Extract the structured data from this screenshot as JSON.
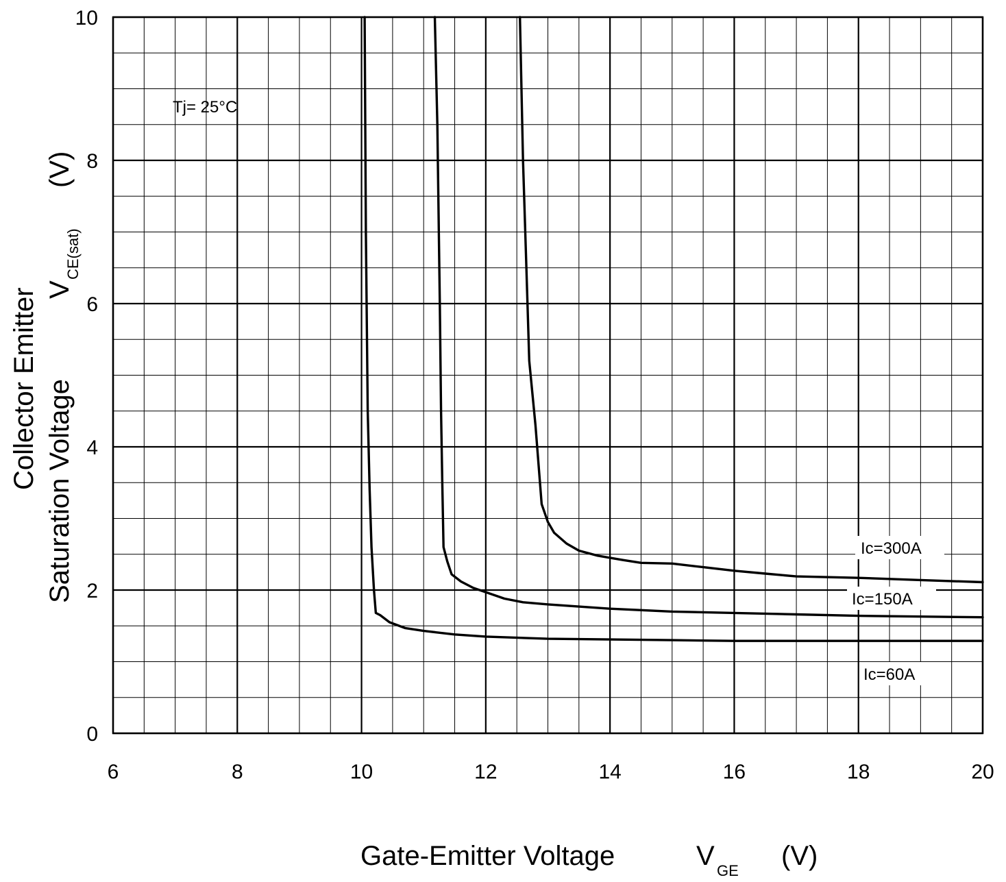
{
  "chart_data": {
    "type": "line",
    "title": "",
    "xlabel": {
      "main": "Gate-Emitter Voltage",
      "symbol": "V",
      "subscript": "GE",
      "unit": "(V)"
    },
    "ylabel": {
      "line1": "Collector Emitter",
      "line2": "Saturation Voltage",
      "symbol": "V",
      "subscript": "CE(sat)",
      "unit": "(V)"
    },
    "xlim": [
      6,
      20
    ],
    "ylim": [
      0,
      10
    ],
    "x_ticks": [
      6,
      8,
      10,
      12,
      14,
      16,
      18,
      20
    ],
    "x_tick_labels": [
      "6",
      "8",
      "10",
      "12",
      "14",
      "16",
      "18",
      "20"
    ],
    "y_ticks": [
      0,
      2,
      4,
      6,
      8,
      10
    ],
    "y_tick_labels": [
      "0",
      "2",
      "4",
      "6",
      "8",
      "10"
    ],
    "grid": true,
    "condition_label": "Tj= 25°C",
    "series": [
      {
        "name": "Ic=300A",
        "points": [
          [
            12.55,
            10
          ],
          [
            12.6,
            8.0
          ],
          [
            12.65,
            6.6
          ],
          [
            12.7,
            5.2
          ],
          [
            12.8,
            4.3
          ],
          [
            12.9,
            3.2
          ],
          [
            13.0,
            2.95
          ],
          [
            13.1,
            2.8
          ],
          [
            13.3,
            2.65
          ],
          [
            13.5,
            2.55
          ],
          [
            13.8,
            2.48
          ],
          [
            14.2,
            2.42
          ],
          [
            14.5,
            2.38
          ],
          [
            15.0,
            2.37
          ],
          [
            15.5,
            2.32
          ],
          [
            16.0,
            2.27
          ],
          [
            16.5,
            2.23
          ],
          [
            17.0,
            2.19
          ],
          [
            18.0,
            2.17
          ],
          [
            19.0,
            2.14
          ],
          [
            20.0,
            2.11
          ]
        ]
      },
      {
        "name": "Ic=150A",
        "points": [
          [
            11.18,
            10
          ],
          [
            11.22,
            8.5
          ],
          [
            11.26,
            6.0
          ],
          [
            11.28,
            4.5
          ],
          [
            11.3,
            3.5
          ],
          [
            11.32,
            2.6
          ],
          [
            11.38,
            2.4
          ],
          [
            11.45,
            2.22
          ],
          [
            11.6,
            2.12
          ],
          [
            11.8,
            2.03
          ],
          [
            12.0,
            1.97
          ],
          [
            12.3,
            1.88
          ],
          [
            12.6,
            1.83
          ],
          [
            13.0,
            1.8
          ],
          [
            14.0,
            1.74
          ],
          [
            15.0,
            1.7
          ],
          [
            16.0,
            1.68
          ],
          [
            17.0,
            1.66
          ],
          [
            18.0,
            1.64
          ],
          [
            20.0,
            1.62
          ]
        ]
      },
      {
        "name": "Ic=60A",
        "points": [
          [
            10.05,
            10
          ],
          [
            10.07,
            7.0
          ],
          [
            10.1,
            4.5
          ],
          [
            10.13,
            3.4
          ],
          [
            10.16,
            2.6
          ],
          [
            10.2,
            2.0
          ],
          [
            10.23,
            1.68
          ],
          [
            10.3,
            1.65
          ],
          [
            10.45,
            1.55
          ],
          [
            10.7,
            1.47
          ],
          [
            11.0,
            1.43
          ],
          [
            11.5,
            1.38
          ],
          [
            12.0,
            1.35
          ],
          [
            13.0,
            1.32
          ],
          [
            14.0,
            1.31
          ],
          [
            15.0,
            1.3
          ],
          [
            16.0,
            1.29
          ],
          [
            18.0,
            1.29
          ],
          [
            20.0,
            1.29
          ]
        ]
      }
    ]
  }
}
